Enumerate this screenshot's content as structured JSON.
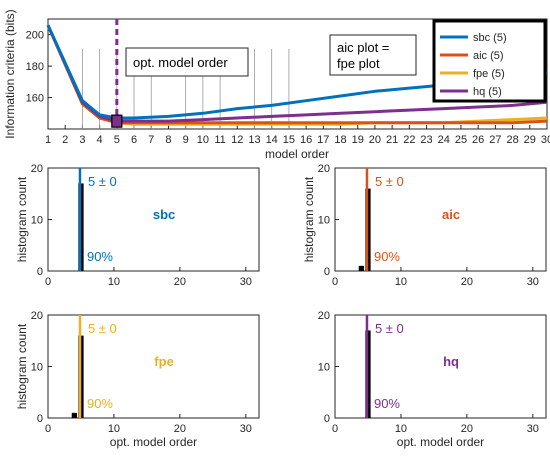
{
  "colors": {
    "sbc": "#0072BD",
    "aic": "#D95319",
    "fpe": "#EDB120",
    "hq": "#7E2F8E",
    "bar": "#000000",
    "axis": "#262626"
  },
  "chart_data": [
    {
      "type": "line",
      "id": "top",
      "xlabel": "model order",
      "ylabel": "Information criteria (bits)",
      "xlim": [
        1,
        30
      ],
      "ylim": [
        140,
        210
      ],
      "xticks": [
        1,
        2,
        3,
        4,
        5,
        6,
        7,
        8,
        9,
        10,
        11,
        12,
        13,
        14,
        15,
        16,
        17,
        18,
        19,
        20,
        21,
        22,
        23,
        24,
        25,
        26,
        27,
        28,
        29,
        30
      ],
      "yticks": [
        160,
        180,
        200
      ],
      "xtick_labels": [
        "1",
        "2",
        "3",
        "4",
        "5",
        "6",
        "7",
        "8",
        "9",
        "10",
        "11",
        "12",
        "13",
        "14",
        "15",
        "16",
        "17",
        "18",
        "19",
        "20",
        "21",
        "22",
        "23",
        "24",
        "25",
        "26",
        "27",
        "28",
        "29",
        "30"
      ],
      "ytick_labels": [
        "160",
        "180",
        "200"
      ],
      "legend_position": "top-right",
      "series": [
        {
          "name": "sbc (5)",
          "key": "sbc",
          "x": [
            1,
            3,
            4,
            5,
            6,
            8,
            10,
            12,
            14,
            16,
            18,
            20,
            22,
            24,
            26,
            28,
            30
          ],
          "y": [
            206,
            158,
            149,
            147,
            147,
            148,
            150,
            153,
            155,
            158,
            161,
            164,
            166,
            168,
            171,
            173,
            176
          ]
        },
        {
          "name": "aic (5)",
          "key": "aic",
          "x": [
            1,
            3,
            4,
            5,
            6,
            8,
            10,
            12,
            14,
            16,
            18,
            20,
            22,
            24,
            26,
            28,
            30
          ],
          "y": [
            206,
            156,
            147,
            144,
            144,
            144,
            144,
            144,
            144,
            144,
            144,
            144,
            144,
            144,
            144,
            144,
            145
          ]
        },
        {
          "name": "fpe (5)",
          "key": "fpe",
          "x": [
            1,
            3,
            4,
            5,
            6,
            8,
            10,
            12,
            14,
            16,
            18,
            20,
            22,
            24,
            26,
            28,
            30
          ],
          "y": [
            206,
            156,
            147,
            144,
            143,
            143,
            143,
            143,
            143,
            143,
            143,
            144,
            144,
            144,
            145,
            146,
            147
          ]
        },
        {
          "name": "hq (5)",
          "key": "hq",
          "x": [
            1,
            3,
            4,
            5,
            6,
            8,
            10,
            12,
            14,
            16,
            18,
            20,
            22,
            24,
            26,
            28,
            30
          ],
          "y": [
            206,
            157,
            148,
            145,
            145,
            145,
            146,
            147,
            148,
            149,
            150,
            151,
            152,
            153,
            154,
            155,
            157
          ]
        }
      ],
      "annotations": {
        "opt_order_label": "opt. model order",
        "aic_fpe_line1": "aic plot =",
        "aic_fpe_line2": "fpe plot",
        "opt_order_x": 5,
        "opt_order_marker_y": 145
      }
    },
    {
      "type": "bar",
      "id": "sbc",
      "title": "sbc",
      "color_key": "sbc",
      "xlabel": "",
      "ylabel": "histogram count",
      "xlim": [
        0,
        32
      ],
      "ylim": [
        0,
        20
      ],
      "xticks": [
        0,
        10,
        20,
        30
      ],
      "yticks": [
        0,
        10,
        20
      ],
      "xtick_labels": [
        "0",
        "10",
        "20",
        "30"
      ],
      "ytick_labels": [
        "0",
        "10",
        "20"
      ],
      "x": [
        5
      ],
      "values": [
        17
      ],
      "vline_x": 5,
      "label_range": "5 ± 0",
      "label_pct": "90%"
    },
    {
      "type": "bar",
      "id": "aic",
      "title": "aic",
      "color_key": "aic",
      "xlabel": "",
      "ylabel": "histogram count",
      "xlim": [
        0,
        32
      ],
      "ylim": [
        0,
        20
      ],
      "xticks": [
        0,
        10,
        20,
        30
      ],
      "yticks": [
        0,
        10,
        20
      ],
      "xtick_labels": [
        "0",
        "10",
        "20",
        "30"
      ],
      "ytick_labels": [
        "0",
        "10",
        "20"
      ],
      "x": [
        4,
        5
      ],
      "values": [
        1,
        16
      ],
      "vline_x": 5,
      "label_range": "5 ± 0",
      "label_pct": "90%"
    },
    {
      "type": "bar",
      "id": "fpe",
      "title": "fpe",
      "color_key": "fpe",
      "xlabel": "opt. model order",
      "ylabel": "histogram count",
      "xlim": [
        0,
        32
      ],
      "ylim": [
        0,
        20
      ],
      "xticks": [
        0,
        10,
        20,
        30
      ],
      "yticks": [
        0,
        10,
        20
      ],
      "xtick_labels": [
        "0",
        "10",
        "20",
        "30"
      ],
      "ytick_labels": [
        "0",
        "10",
        "20"
      ],
      "x": [
        4,
        5
      ],
      "values": [
        1,
        16
      ],
      "vline_x": 5,
      "label_range": "5 ± 0",
      "label_pct": "90%"
    },
    {
      "type": "bar",
      "id": "hq",
      "title": "hq",
      "color_key": "hq",
      "xlabel": "opt. model order",
      "ylabel": "",
      "xlim": [
        0,
        32
      ],
      "ylim": [
        0,
        20
      ],
      "xticks": [
        0,
        10,
        20,
        30
      ],
      "yticks": [
        0,
        10,
        20
      ],
      "xtick_labels": [
        "0",
        "10",
        "20",
        "30"
      ],
      "ytick_labels": [
        "0",
        "10",
        "20"
      ],
      "x": [
        5
      ],
      "values": [
        17
      ],
      "vline_x": 5,
      "label_range": "5 ± 0",
      "label_pct": "90%"
    }
  ]
}
